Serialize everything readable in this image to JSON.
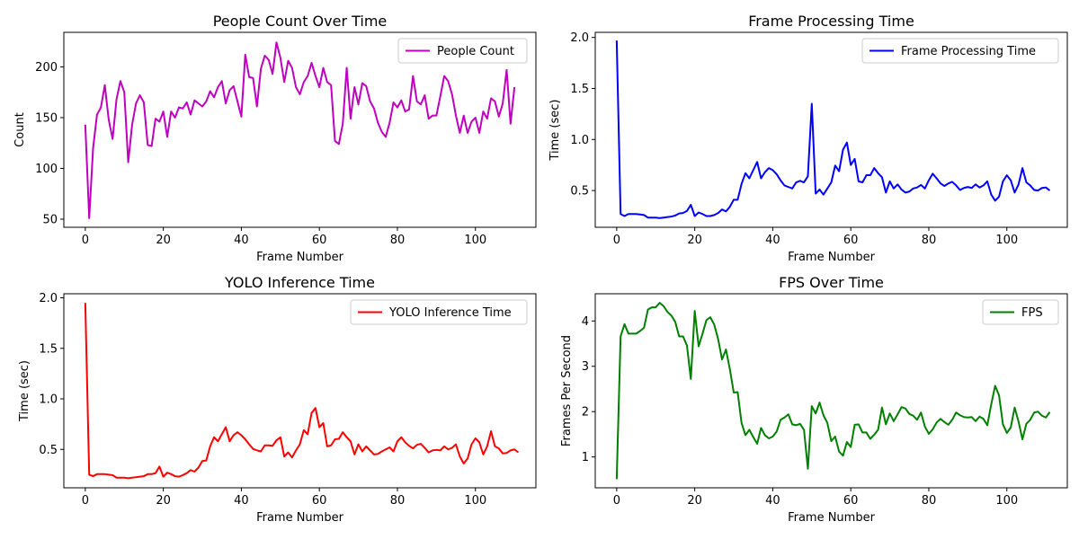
{
  "chart_data": [
    {
      "type": "line",
      "title": "People Count Over Time",
      "xlabel": "Frame Number",
      "ylabel": "Count",
      "xlim": [
        -5.5,
        115.5
      ],
      "ylim": [
        42,
        234
      ],
      "xticks": [
        0,
        20,
        40,
        60,
        80,
        100
      ],
      "yticks": [
        50,
        100,
        150,
        200
      ],
      "ytick_labels": [
        "50",
        "100",
        "150",
        "200"
      ],
      "legend": "top-right",
      "grid": false,
      "series": [
        {
          "name": "People Count",
          "color": "#bf00bf",
          "values": [
            143,
            51,
            120,
            153,
            160,
            182,
            148,
            129,
            168,
            186,
            175,
            106,
            143,
            164,
            172,
            165,
            123,
            122,
            149,
            146,
            156,
            131,
            156,
            150,
            160,
            159,
            165,
            153,
            167,
            164,
            161,
            166,
            176,
            170,
            180,
            186,
            164,
            177,
            181,
            166,
            151,
            212,
            190,
            189,
            161,
            198,
            211,
            207,
            193,
            224,
            209,
            185,
            206,
            199,
            180,
            173,
            185,
            191,
            204,
            191,
            180,
            199,
            185,
            182,
            127,
            124,
            144,
            199,
            149,
            180,
            163,
            184,
            181,
            166,
            159,
            145,
            136,
            131,
            145,
            165,
            160,
            167,
            156,
            158,
            191,
            166,
            163,
            172,
            149,
            152,
            152,
            171,
            191,
            186,
            173,
            152,
            135,
            152,
            135,
            146,
            150,
            135,
            156,
            149,
            169,
            166,
            151,
            164,
            197,
            144,
            180
          ]
        }
      ]
    },
    {
      "type": "line",
      "title": "Frame Processing Time",
      "xlabel": "Frame Number",
      "ylabel": "Time (sec)",
      "xlim": [
        -5.5,
        115.5
      ],
      "ylim": [
        0.14,
        2.05
      ],
      "xticks": [
        0,
        20,
        40,
        60,
        80,
        100
      ],
      "yticks": [
        0.5,
        1.0,
        1.5,
        2.0
      ],
      "ytick_labels": [
        "0.5",
        "1.0",
        "1.5",
        "2.0"
      ],
      "legend": "top-right",
      "grid": false,
      "series": [
        {
          "name": "Frame Processing Time",
          "color": "#0000ff",
          "values": [
            1.97,
            0.27,
            0.25,
            0.27,
            0.27,
            0.27,
            0.265,
            0.26,
            0.235,
            0.235,
            0.235,
            0.23,
            0.235,
            0.24,
            0.245,
            0.255,
            0.275,
            0.28,
            0.3,
            0.36,
            0.25,
            0.285,
            0.27,
            0.25,
            0.25,
            0.26,
            0.28,
            0.315,
            0.295,
            0.34,
            0.41,
            0.41,
            0.565,
            0.67,
            0.62,
            0.7,
            0.78,
            0.62,
            0.68,
            0.72,
            0.7,
            0.66,
            0.6,
            0.55,
            0.535,
            0.52,
            0.58,
            0.595,
            0.58,
            0.64,
            1.35,
            0.47,
            0.51,
            0.46,
            0.52,
            0.58,
            0.745,
            0.69,
            0.9,
            0.97,
            0.75,
            0.81,
            0.59,
            0.58,
            0.65,
            0.65,
            0.72,
            0.67,
            0.63,
            0.48,
            0.59,
            0.52,
            0.56,
            0.51,
            0.48,
            0.49,
            0.52,
            0.53,
            0.555,
            0.52,
            0.6,
            0.665,
            0.62,
            0.57,
            0.545,
            0.57,
            0.585,
            0.55,
            0.505,
            0.525,
            0.535,
            0.525,
            0.56,
            0.53,
            0.55,
            0.59,
            0.46,
            0.4,
            0.44,
            0.59,
            0.65,
            0.6,
            0.48,
            0.56,
            0.72,
            0.58,
            0.55,
            0.505,
            0.5,
            0.525,
            0.53,
            0.5
          ]
        }
      ]
    },
    {
      "type": "line",
      "title": "YOLO Inference Time",
      "xlabel": "Frame Number",
      "ylabel": "Time (sec)",
      "xlim": [
        -5.5,
        115.5
      ],
      "ylim": [
        0.12,
        2.04
      ],
      "xticks": [
        0,
        20,
        40,
        60,
        80,
        100
      ],
      "yticks": [
        0.5,
        1.0,
        1.5,
        2.0
      ],
      "ytick_labels": [
        "0.5",
        "1.0",
        "1.5",
        "2.0"
      ],
      "legend": "top-right",
      "grid": false,
      "series": [
        {
          "name": "YOLO Inference Time",
          "color": "#ff0000",
          "values": [
            1.95,
            0.25,
            0.235,
            0.255,
            0.255,
            0.255,
            0.25,
            0.245,
            0.22,
            0.22,
            0.22,
            0.215,
            0.22,
            0.225,
            0.23,
            0.235,
            0.255,
            0.255,
            0.265,
            0.33,
            0.23,
            0.27,
            0.255,
            0.235,
            0.23,
            0.245,
            0.265,
            0.295,
            0.28,
            0.32,
            0.385,
            0.39,
            0.53,
            0.62,
            0.58,
            0.65,
            0.72,
            0.58,
            0.64,
            0.67,
            0.64,
            0.6,
            0.55,
            0.505,
            0.49,
            0.48,
            0.54,
            0.54,
            0.535,
            0.59,
            0.62,
            0.43,
            0.47,
            0.42,
            0.49,
            0.55,
            0.69,
            0.65,
            0.86,
            0.91,
            0.72,
            0.76,
            0.53,
            0.54,
            0.6,
            0.605,
            0.67,
            0.62,
            0.58,
            0.45,
            0.55,
            0.48,
            0.53,
            0.49,
            0.45,
            0.455,
            0.48,
            0.5,
            0.52,
            0.48,
            0.58,
            0.62,
            0.57,
            0.535,
            0.51,
            0.545,
            0.555,
            0.515,
            0.47,
            0.49,
            0.495,
            0.49,
            0.53,
            0.5,
            0.515,
            0.55,
            0.43,
            0.36,
            0.41,
            0.55,
            0.61,
            0.57,
            0.45,
            0.53,
            0.68,
            0.53,
            0.51,
            0.46,
            0.465,
            0.49,
            0.5,
            0.47
          ]
        }
      ]
    },
    {
      "type": "line",
      "title": "FPS Over Time",
      "xlabel": "Frame Number",
      "ylabel": "Frames Per Second",
      "xlim": [
        -5.5,
        115.5
      ],
      "ylim": [
        0.32,
        4.6
      ],
      "xticks": [
        0,
        20,
        40,
        60,
        80,
        100
      ],
      "yticks": [
        1,
        2,
        3,
        4
      ],
      "ytick_labels": [
        "1",
        "2",
        "3",
        "4"
      ],
      "legend": "top-right",
      "grid": false,
      "series": [
        {
          "name": "FPS",
          "color": "#008000",
          "values": [
            0.51,
            3.66,
            3.93,
            3.72,
            3.72,
            3.72,
            3.78,
            3.85,
            4.25,
            4.3,
            4.3,
            4.4,
            4.33,
            4.2,
            4.12,
            3.98,
            3.66,
            3.66,
            3.46,
            2.72,
            4.22,
            3.44,
            3.72,
            4.02,
            4.08,
            3.92,
            3.6,
            3.15,
            3.37,
            2.94,
            2.42,
            2.43,
            1.75,
            1.48,
            1.6,
            1.44,
            1.29,
            1.64,
            1.48,
            1.41,
            1.45,
            1.56,
            1.82,
            1.87,
            1.94,
            1.72,
            1.7,
            1.73,
            1.6,
            0.74,
            2.12,
            1.96,
            2.2,
            1.92,
            1.75,
            1.35,
            1.45,
            1.12,
            1.03,
            1.33,
            1.22,
            1.71,
            1.72,
            1.54,
            1.54,
            1.4,
            1.49,
            1.6,
            2.09,
            1.72,
            1.96,
            1.79,
            1.94,
            2.1,
            2.07,
            1.95,
            1.91,
            1.82,
            1.98,
            1.67,
            1.51,
            1.61,
            1.76,
            1.84,
            1.77,
            1.71,
            1.82,
            1.98,
            1.92,
            1.88,
            1.87,
            1.88,
            1.79,
            1.89,
            1.84,
            1.7,
            2.16,
            2.57,
            2.36,
            1.72,
            1.53,
            1.65,
            2.09,
            1.78,
            1.39,
            1.73,
            1.82,
            1.98,
            2.0,
            1.91,
            1.87,
            1.99
          ]
        }
      ]
    }
  ]
}
